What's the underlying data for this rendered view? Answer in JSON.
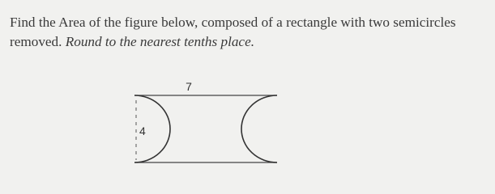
{
  "question": {
    "text": "Find the Area of the figure below, composed of a rectangle with two semicircles removed.",
    "instruction": "Round to the nearest tenths place."
  },
  "figure": {
    "labels": {
      "top": "7",
      "left": "4"
    }
  }
}
